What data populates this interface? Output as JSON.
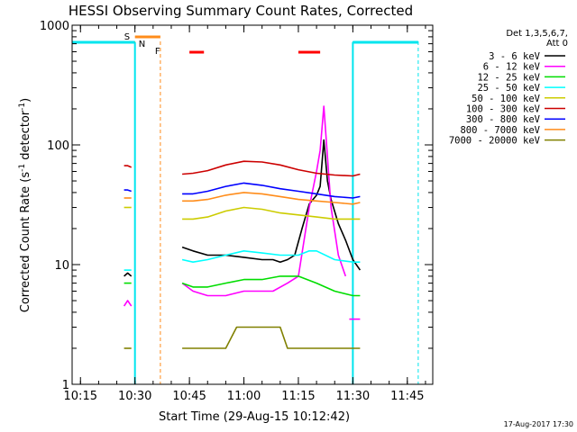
{
  "chart_data": {
    "type": "line",
    "title": "HESSI Observing Summary Count Rates, Corrected",
    "xlabel": "Start Time (29-Aug-15 10:12:42)",
    "ylabel_main": "Corrected Count Rate (s",
    "ylabel_sup1": "-1",
    "ylabel_mid": " detector",
    "ylabel_sup2": "-1",
    "ylabel_end": ")",
    "yscale": "log",
    "xlim": [
      "10:12:42",
      "11:52:00"
    ],
    "ylim": [
      1,
      1000
    ],
    "x_ticks": [
      "10:15",
      "10:30",
      "10:45",
      "11:00",
      "11:15",
      "11:30",
      "11:45"
    ],
    "y_ticks": [
      "1",
      "10",
      "100",
      "1000"
    ],
    "legend_title": [
      "Det 1,3,5,6,7,",
      "Att 0"
    ],
    "legend_position": "right",
    "timestamp": "17-Aug-2017 17:30",
    "flag_labels": {
      "saa": "S",
      "night": "N",
      "flare": "F"
    },
    "colors": {
      "axes": "#000000",
      "night": "#00e5ee",
      "saa": "#ff8c1a",
      "flare": "#ff0000"
    },
    "series": [
      {
        "name": "3 - 6 keV",
        "color": "#000000",
        "segments": [
          {
            "x": [
              "10:27",
              "10:28",
              "10:29"
            ],
            "y": [
              8,
              8.5,
              8
            ]
          },
          {
            "x": [
              "10:43",
              "10:46",
              "10:50",
              "10:55",
              "11:00",
              "11:05",
              "11:08",
              "11:10",
              "11:12",
              "11:14",
              "11:16",
              "11:18",
              "11:20",
              "11:21",
              "11:22",
              "11:23",
              "11:24",
              "11:26",
              "11:28",
              "11:30",
              "11:32"
            ],
            "y": [
              14,
              13,
              12,
              12,
              11.5,
              11,
              11,
              10.5,
              11,
              12,
              20,
              32,
              38,
              45,
              110,
              50,
              35,
              22,
              16,
              11,
              9
            ]
          }
        ]
      },
      {
        "name": "6 - 12 keV",
        "color": "#ff00ff",
        "segments": [
          {
            "x": [
              "10:27",
              "10:28",
              "10:29"
            ],
            "y": [
              4.5,
              5,
              4.5
            ]
          },
          {
            "x": [
              "10:43",
              "10:46",
              "10:50",
              "10:55",
              "11:00",
              "11:05",
              "11:08",
              "11:12",
              "11:15",
              "11:18",
              "11:20",
              "11:21",
              "11:22",
              "11:23",
              "11:24",
              "11:26",
              "11:28"
            ],
            "y": [
              7,
              6,
              5.5,
              5.5,
              6,
              6,
              6,
              7,
              8,
              30,
              60,
              90,
              210,
              80,
              30,
              12,
              8
            ]
          },
          {
            "x": [
              "11:29",
              "11:30",
              "11:31",
              "11:32"
            ],
            "y": [
              3.5,
              3.5,
              3.5,
              3.5
            ]
          }
        ]
      },
      {
        "name": "12 - 25 keV",
        "color": "#00dd00",
        "segments": [
          {
            "x": [
              "10:27",
              "10:28",
              "10:29"
            ],
            "y": [
              7,
              7,
              7
            ]
          },
          {
            "x": [
              "10:43",
              "10:46",
              "10:50",
              "10:55",
              "11:00",
              "11:05",
              "11:10",
              "11:15",
              "11:20",
              "11:25",
              "11:30",
              "11:32"
            ],
            "y": [
              7,
              6.5,
              6.5,
              7,
              7.5,
              7.5,
              8,
              8,
              7,
              6,
              5.5,
              5.5
            ]
          }
        ]
      },
      {
        "name": "25 - 50 keV",
        "color": "#00ffff",
        "segments": [
          {
            "x": [
              "10:27",
              "10:28",
              "10:29"
            ],
            "y": [
              9,
              9,
              9
            ]
          },
          {
            "x": [
              "10:43",
              "10:46",
              "10:50",
              "10:55",
              "11:00",
              "11:05",
              "11:10",
              "11:15",
              "11:18",
              "11:20",
              "11:25",
              "11:30",
              "11:32"
            ],
            "y": [
              11,
              10.5,
              11,
              12,
              13,
              12.5,
              12,
              12,
              13,
              13,
              11,
              10.5,
              10.5
            ]
          }
        ]
      },
      {
        "name": "50 - 100 keV",
        "color": "#cccc00",
        "segments": [
          {
            "x": [
              "10:27",
              "10:28",
              "10:29"
            ],
            "y": [
              30,
              30,
              30
            ]
          },
          {
            "x": [
              "10:43",
              "10:46",
              "10:50",
              "10:55",
              "11:00",
              "11:05",
              "11:10",
              "11:15",
              "11:20",
              "11:25",
              "11:30",
              "11:32"
            ],
            "y": [
              24,
              24,
              25,
              28,
              30,
              29,
              27,
              26,
              25,
              24,
              24,
              24
            ]
          }
        ]
      },
      {
        "name": "100 - 300 keV",
        "color": "#cc0000",
        "segments": [
          {
            "x": [
              "10:27",
              "10:28",
              "10:29"
            ],
            "y": [
              67,
              67,
              65
            ]
          },
          {
            "x": [
              "10:43",
              "10:46",
              "10:50",
              "10:55",
              "11:00",
              "11:05",
              "11:10",
              "11:15",
              "11:20",
              "11:25",
              "11:30",
              "11:32"
            ],
            "y": [
              57,
              58,
              61,
              68,
              73,
              72,
              68,
              62,
              58,
              56,
              55,
              57
            ]
          }
        ]
      },
      {
        "name": "300 - 800 keV",
        "color": "#0000ff",
        "segments": [
          {
            "x": [
              "10:27",
              "10:28",
              "10:29"
            ],
            "y": [
              42,
              42,
              41
            ]
          },
          {
            "x": [
              "10:43",
              "10:46",
              "10:50",
              "10:55",
              "11:00",
              "11:05",
              "11:10",
              "11:15",
              "11:20",
              "11:25",
              "11:30",
              "11:32"
            ],
            "y": [
              39,
              39,
              41,
              45,
              48,
              46,
              43,
              41,
              39,
              37,
              36,
              37
            ]
          }
        ]
      },
      {
        "name": "800 - 7000 keV",
        "color": "#ff8c1a",
        "segments": [
          {
            "x": [
              "10:27",
              "10:28",
              "10:29"
            ],
            "y": [
              36,
              36,
              36
            ]
          },
          {
            "x": [
              "10:43",
              "10:46",
              "10:50",
              "10:55",
              "11:00",
              "11:05",
              "11:10",
              "11:15",
              "11:20",
              "11:25",
              "11:30",
              "11:32"
            ],
            "y": [
              34,
              34,
              35,
              38,
              40,
              39,
              37,
              35,
              34,
              33,
              32,
              33
            ]
          }
        ]
      },
      {
        "name": "7000 - 20000 keV",
        "color": "#808000",
        "segments": [
          {
            "x": [
              "10:27",
              "10:28",
              "10:29"
            ],
            "y": [
              2,
              2,
              2
            ]
          },
          {
            "x": [
              "10:43",
              "10:46",
              "10:50",
              "10:55",
              "10:58",
              "11:00",
              "11:05",
              "11:10",
              "11:12",
              "11:15",
              "11:20",
              "11:25",
              "11:30",
              "11:32"
            ],
            "y": [
              2,
              2,
              2,
              2,
              3,
              3,
              3,
              3,
              2,
              2,
              2,
              2,
              2,
              2
            ]
          }
        ]
      }
    ],
    "flags": {
      "night": [
        [
          "10:12:42",
          "10:30"
        ],
        [
          "11:30",
          "11:48"
        ]
      ],
      "saa": [
        [
          "10:30",
          "10:37"
        ]
      ],
      "flare": [
        [
          "10:45",
          "10:49"
        ],
        [
          "11:15",
          "11:21"
        ]
      ],
      "dashed_markers": [
        {
          "time": "10:30",
          "color": "#ff8c1a"
        },
        {
          "time": "10:37",
          "color": "#ff8c1a"
        },
        {
          "time": "11:30",
          "color": "#00e5ee"
        },
        {
          "time": "11:48",
          "color": "#00e5ee"
        }
      ]
    }
  }
}
